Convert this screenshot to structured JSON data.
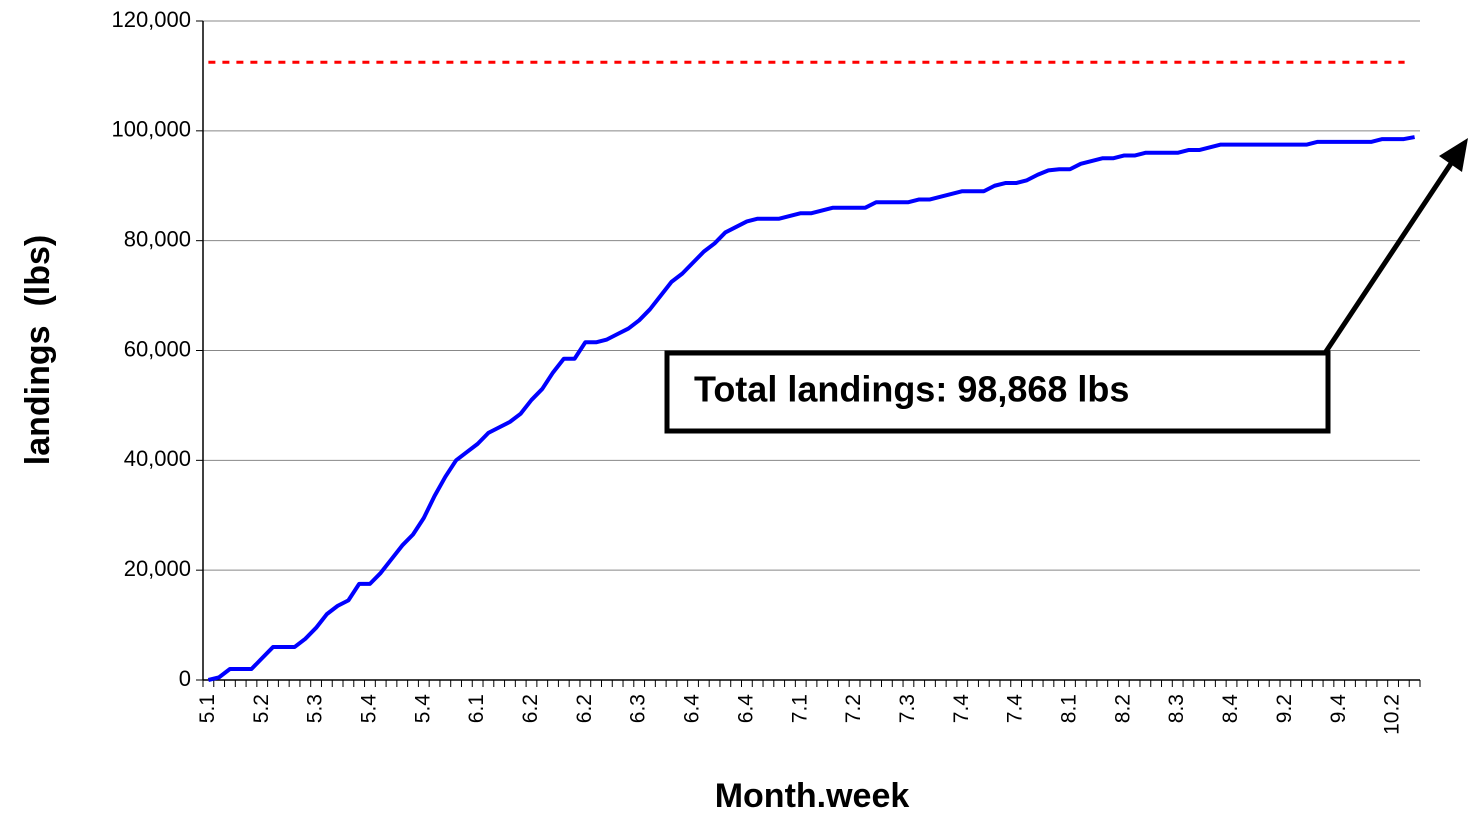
{
  "chart_data": {
    "type": "line",
    "x_label": "Month.week",
    "y_label": "landings  (lbs)",
    "annotation": "Total landings: 98,868 lbs",
    "categories": [
      "5.1",
      null,
      null,
      null,
      null,
      "5.2",
      null,
      null,
      null,
      null,
      "5.3",
      null,
      null,
      null,
      null,
      "5.4",
      null,
      null,
      null,
      null,
      "5.4",
      null,
      null,
      null,
      null,
      "6.1",
      null,
      null,
      null,
      null,
      "6.2",
      null,
      null,
      null,
      null,
      "6.2",
      null,
      null,
      null,
      null,
      "6.3",
      null,
      null,
      null,
      null,
      "6.4",
      null,
      null,
      null,
      null,
      "6.4",
      null,
      null,
      null,
      null,
      "7.1",
      null,
      null,
      null,
      null,
      "7.2",
      null,
      null,
      null,
      null,
      "7.3",
      null,
      null,
      null,
      null,
      "7.4",
      null,
      null,
      null,
      null,
      "7.4",
      null,
      null,
      null,
      null,
      "8.1",
      null,
      null,
      null,
      null,
      "8.2",
      null,
      null,
      null,
      null,
      "8.3",
      null,
      null,
      null,
      null,
      "8.4",
      null,
      null,
      null,
      null,
      "9.2",
      null,
      null,
      null,
      null,
      "9.4",
      null,
      null,
      null,
      null,
      "10.2",
      null,
      null
    ],
    "series": [
      {
        "color": "#0000ff",
        "values": [
          0,
          500,
          2000,
          2000,
          2000,
          4000,
          6000,
          6000,
          6000,
          7500,
          9500,
          12000,
          13500,
          14500,
          17500,
          17500,
          19500,
          22000,
          24500,
          26500,
          29500,
          33500,
          37000,
          40000,
          41500,
          43000,
          45000,
          46000,
          47000,
          48500,
          51000,
          53000,
          56000,
          58500,
          58500,
          61500,
          61500,
          62000,
          63000,
          64000,
          65500,
          67500,
          70000,
          72500,
          74000,
          76000,
          78000,
          79500,
          81500,
          82500,
          83500,
          84000,
          84000,
          84000,
          84500,
          85000,
          85000,
          85500,
          86000,
          86000,
          86000,
          86000,
          87000,
          87000,
          87000,
          87000,
          87500,
          87500,
          88000,
          88500,
          89000,
          89000,
          89000,
          90000,
          90500,
          90500,
          91000,
          92000,
          92800,
          93000,
          93000,
          94000,
          94500,
          95000,
          95000,
          95500,
          95500,
          96000,
          96000,
          96000,
          96000,
          96500,
          96500,
          97000,
          97500,
          97500,
          97500,
          97500,
          97500,
          97500,
          97500,
          97500,
          97500,
          98000,
          98000,
          98000,
          98000,
          98000,
          98000,
          98500,
          98500,
          98500,
          98868
        ]
      }
    ],
    "reference_line": {
      "value": 112500,
      "color": "#ff0000"
    },
    "ylim": [
      0,
      120000
    ],
    "yticks": [
      0,
      {
        "value": 20000,
        "label": "20,000"
      },
      {
        "value": 40000,
        "label": "40,000"
      },
      {
        "value": 60000,
        "label": "60,000"
      },
      {
        "value": 80000,
        "label": "80,000"
      },
      {
        "value": 100000,
        "label": "100,000"
      },
      {
        "value": 120000,
        "label": "120,000"
      }
    ],
    "grid": true
  }
}
